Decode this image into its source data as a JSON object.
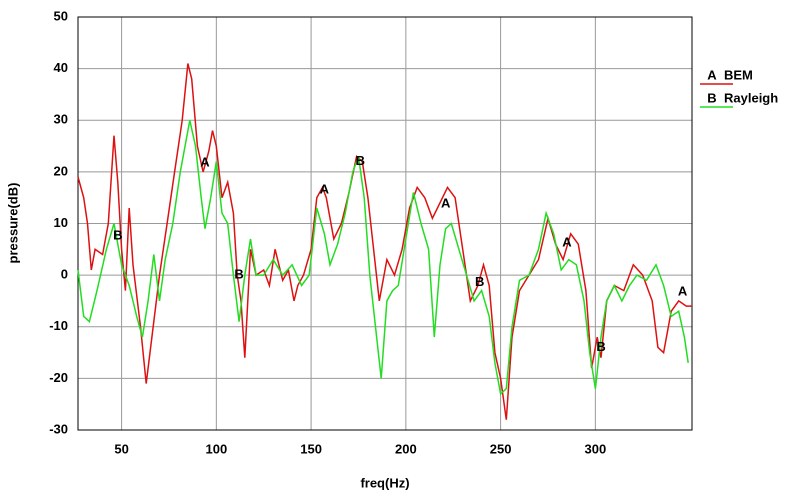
{
  "chart_data": {
    "type": "line",
    "xlabel": "freq(Hz)",
    "ylabel": "pressure(dB)",
    "xlim": [
      27,
      351
    ],
    "ylim": [
      -30,
      50
    ],
    "xticks": [
      50,
      100,
      150,
      200,
      250,
      300
    ],
    "yticks": [
      -30,
      -20,
      -10,
      0,
      10,
      20,
      30,
      40,
      50
    ],
    "grid": true,
    "legend": "upper right",
    "series": [
      {
        "name": "BEM",
        "marker": "A",
        "color": "#dd1111",
        "x": [
          27,
          30,
          32,
          34,
          36,
          40,
          43,
          46,
          48,
          50,
          52,
          54,
          56,
          60,
          63,
          66,
          70,
          74,
          78,
          82,
          85,
          87,
          90,
          93,
          96,
          98,
          100,
          103,
          106,
          109,
          111,
          113,
          115,
          118,
          121,
          125,
          128,
          131,
          135,
          138,
          141,
          143,
          146,
          150,
          153,
          156,
          158,
          162,
          166,
          170,
          174,
          177,
          180,
          183,
          186,
          190,
          194,
          198,
          202,
          206,
          210,
          214,
          218,
          222,
          226,
          230,
          234,
          238,
          241,
          244,
          247,
          250,
          253,
          256,
          260,
          265,
          270,
          275,
          279,
          283,
          287,
          291,
          295,
          298,
          301,
          303,
          306,
          310,
          315,
          320,
          325,
          330,
          333,
          336,
          340,
          344,
          348,
          351
        ],
        "values": [
          19,
          15,
          10,
          1,
          5,
          4,
          10,
          27,
          18,
          5,
          -3,
          13,
          2,
          -10,
          -21,
          -12,
          0,
          10,
          20,
          30,
          41,
          38,
          25,
          20,
          24,
          28,
          25,
          15,
          18,
          12,
          0,
          -5,
          -16,
          5,
          0,
          1,
          -2,
          5,
          -1,
          1,
          -5,
          -2,
          0,
          5,
          15,
          17,
          15,
          7,
          10,
          16,
          23,
          22,
          15,
          5,
          -5,
          3,
          0,
          5,
          13,
          17,
          15,
          11,
          14,
          17,
          15,
          5,
          -5,
          -2,
          2,
          -2,
          -15,
          -20,
          -28,
          -12,
          -3,
          0,
          3,
          11,
          6,
          3,
          8,
          6,
          -3,
          -18,
          -12,
          -16,
          -5,
          -2,
          -3,
          2,
          0,
          -5,
          -14,
          -15,
          -7,
          -5,
          -6,
          -6
        ]
      },
      {
        "name": "Rayleigh",
        "marker": "B",
        "color": "#22dd22",
        "x": [
          27,
          30,
          33,
          37,
          42,
          46,
          50,
          54,
          58,
          61,
          64,
          67,
          70,
          73,
          77,
          81,
          86,
          89,
          92,
          94,
          97,
          100,
          103,
          106,
          109,
          112,
          115,
          118,
          121,
          125,
          130,
          135,
          140,
          145,
          149,
          153,
          157,
          160,
          164,
          168,
          172,
          175,
          178,
          181,
          184,
          187,
          190,
          193,
          196,
          200,
          204,
          208,
          212,
          215,
          218,
          221,
          224,
          228,
          232,
          236,
          240,
          244,
          247,
          250,
          253,
          256,
          260,
          265,
          270,
          274,
          278,
          282,
          286,
          290,
          294,
          297,
          300,
          303,
          306,
          310,
          314,
          318,
          322,
          327,
          332,
          336,
          340,
          344,
          347,
          349
        ],
        "values": [
          1,
          -8,
          -9,
          -3,
          5,
          10,
          2,
          -2,
          -8,
          -12,
          -5,
          4,
          -5,
          3,
          10,
          20,
          30,
          25,
          15,
          9,
          15,
          22,
          12,
          10,
          0,
          -9,
          0,
          7,
          0,
          0,
          3,
          0,
          2,
          -2,
          0,
          13,
          8,
          2,
          6,
          12,
          20,
          23,
          15,
          0,
          -10,
          -20,
          -5,
          -3,
          -2,
          7,
          16,
          10,
          5,
          -12,
          2,
          9,
          10,
          5,
          0,
          -5,
          -3,
          -8,
          -17,
          -23,
          -22,
          -10,
          -1,
          0,
          5,
          12,
          8,
          1,
          3,
          2,
          -5,
          -15,
          -22,
          -12,
          -5,
          -2,
          -5,
          -2,
          0,
          -1,
          2,
          -2,
          -8,
          -7,
          -12,
          -17
        ]
      }
    ],
    "annotations": [
      {
        "text": "B",
        "x": 48,
        "y": 7.6
      },
      {
        "text": "A",
        "x": 94,
        "y": 21.7
      },
      {
        "text": "B",
        "x": 112,
        "y": 0
      },
      {
        "text": "A",
        "x": 157,
        "y": 16.5
      },
      {
        "text": "B",
        "x": 176,
        "y": 22
      },
      {
        "text": "A",
        "x": 221,
        "y": 13.8
      },
      {
        "text": "B",
        "x": 239,
        "y": -1.4
      },
      {
        "text": "A",
        "x": 285,
        "y": 6.2
      },
      {
        "text": "B",
        "x": 303,
        "y": -14
      },
      {
        "text": "A",
        "x": 346,
        "y": -3.3
      }
    ]
  }
}
